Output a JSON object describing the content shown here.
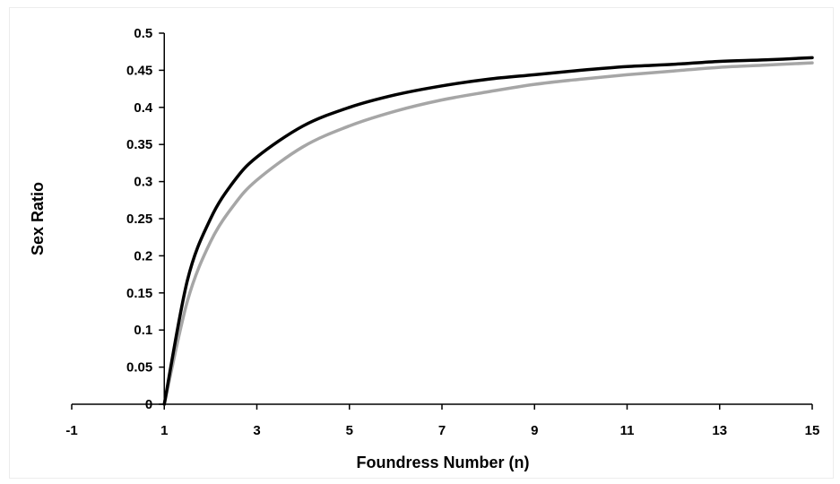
{
  "chart_data": {
    "type": "line",
    "title": "",
    "xlabel": "Foundress Number (n)",
    "ylabel": "Sex Ratio",
    "xlim": [
      -1,
      15
    ],
    "ylim": [
      0,
      0.5
    ],
    "x_ticks": [
      -1,
      1,
      3,
      5,
      7,
      9,
      11,
      13,
      15
    ],
    "x_tick_labels": [
      "-1",
      "1",
      "3",
      "5",
      "7",
      "9",
      "11",
      "13",
      "15"
    ],
    "y_ticks": [
      0,
      0.05,
      0.1,
      0.15,
      0.2,
      0.25,
      0.3,
      0.35,
      0.4,
      0.45,
      0.5
    ],
    "y_tick_labels": [
      "0",
      "0.05",
      "0.1",
      "0.15",
      "0.2",
      "0.25",
      "0.3",
      "0.35",
      "0.4",
      "0.45",
      "0.5"
    ],
    "grid": false,
    "legend": "none",
    "series": [
      {
        "color": "#000000",
        "x": [
          1,
          1.5,
          2,
          2.5,
          3,
          4,
          5,
          6,
          7,
          8,
          9,
          10,
          11,
          12,
          13,
          14,
          15
        ],
        "values": [
          0,
          0.167,
          0.25,
          0.3,
          0.333,
          0.375,
          0.4,
          0.417,
          0.429,
          0.438,
          0.444,
          0.45,
          0.455,
          0.458,
          0.462,
          0.464,
          0.467
        ]
      },
      {
        "color": "#a6a6a6",
        "x": [
          1,
          1.5,
          2,
          2.5,
          3,
          4,
          5,
          6,
          7,
          8,
          9,
          10,
          11,
          12,
          13,
          14,
          15
        ],
        "values": [
          0,
          0.139,
          0.219,
          0.268,
          0.302,
          0.347,
          0.375,
          0.395,
          0.41,
          0.421,
          0.431,
          0.438,
          0.444,
          0.449,
          0.454,
          0.457,
          0.46
        ]
      }
    ]
  }
}
